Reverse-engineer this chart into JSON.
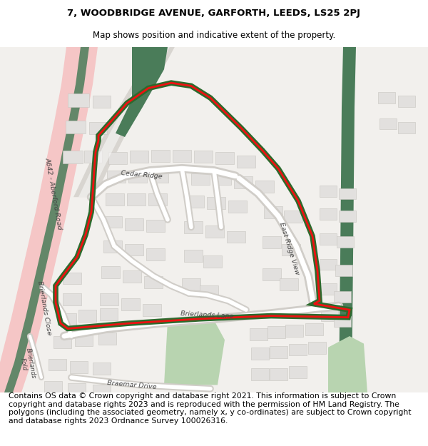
{
  "title_line1": "7, WOODBRIDGE AVENUE, GARFORTH, LEEDS, LS25 2PJ",
  "title_line2": "Map shows position and indicative extent of the property.",
  "footer_text": "Contains OS data © Crown copyright and database right 2021. This information is subject to Crown copyright and database rights 2023 and is reproduced with the permission of HM Land Registry. The polygons (including the associated geometry, namely x, y co-ordinates) are subject to Crown copyright and database rights 2023 Ordnance Survey 100026316.",
  "title_fontsize": 9.5,
  "footer_fontsize": 7.8,
  "map_bg_color": "#f2f0ed",
  "road_pink_color": "#f5c6c6",
  "road_green_dark": "#4a7c59",
  "road_green_light": "#8db88d",
  "park_green": "#b8d4b0",
  "property_red": "#ee1111",
  "property_green": "#2d6a2d",
  "green_lw": 5.5,
  "red_lw": 2.0,
  "housing_face": "#e2e0de",
  "housing_edge": "#c8c5c0",
  "road_face": "#ffffff",
  "road_edge": "#d8d5d0"
}
